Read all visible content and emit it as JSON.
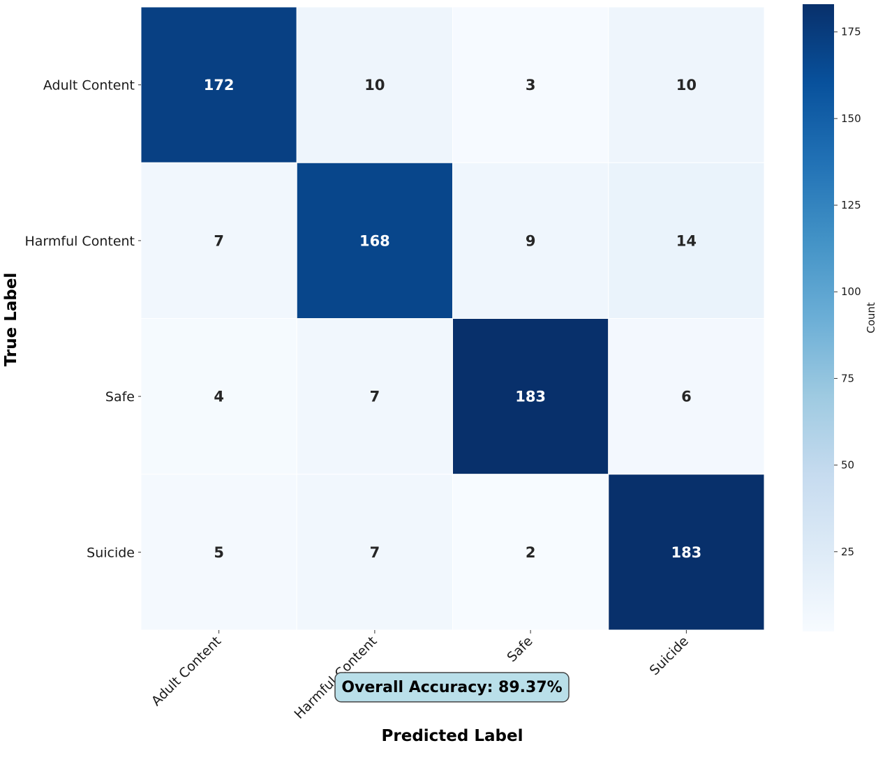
{
  "chart_data": {
    "type": "heatmap",
    "title": "",
    "xlabel": "Predicted Label",
    "ylabel": "True Label",
    "x_categories": [
      "Adult Content",
      "Harmful Content",
      "Safe",
      "Suicide"
    ],
    "y_categories": [
      "Adult Content",
      "Harmful Content",
      "Safe",
      "Suicide"
    ],
    "matrix": [
      [
        172,
        10,
        3,
        10
      ],
      [
        7,
        168,
        9,
        14
      ],
      [
        4,
        7,
        183,
        6
      ],
      [
        5,
        7,
        2,
        183
      ]
    ],
    "colormap": "Blues",
    "colorbar": {
      "label": "Count",
      "range": [
        2,
        183
      ],
      "ticks": [
        25,
        50,
        75,
        100,
        125,
        150,
        175
      ]
    },
    "annotation": "Overall Accuracy: 89.37%"
  },
  "colors": {
    "annotation_bg": "#b9dfe9",
    "annotation_border": "#444444",
    "light_text": "#ffffff",
    "dark_text": "#262626"
  }
}
